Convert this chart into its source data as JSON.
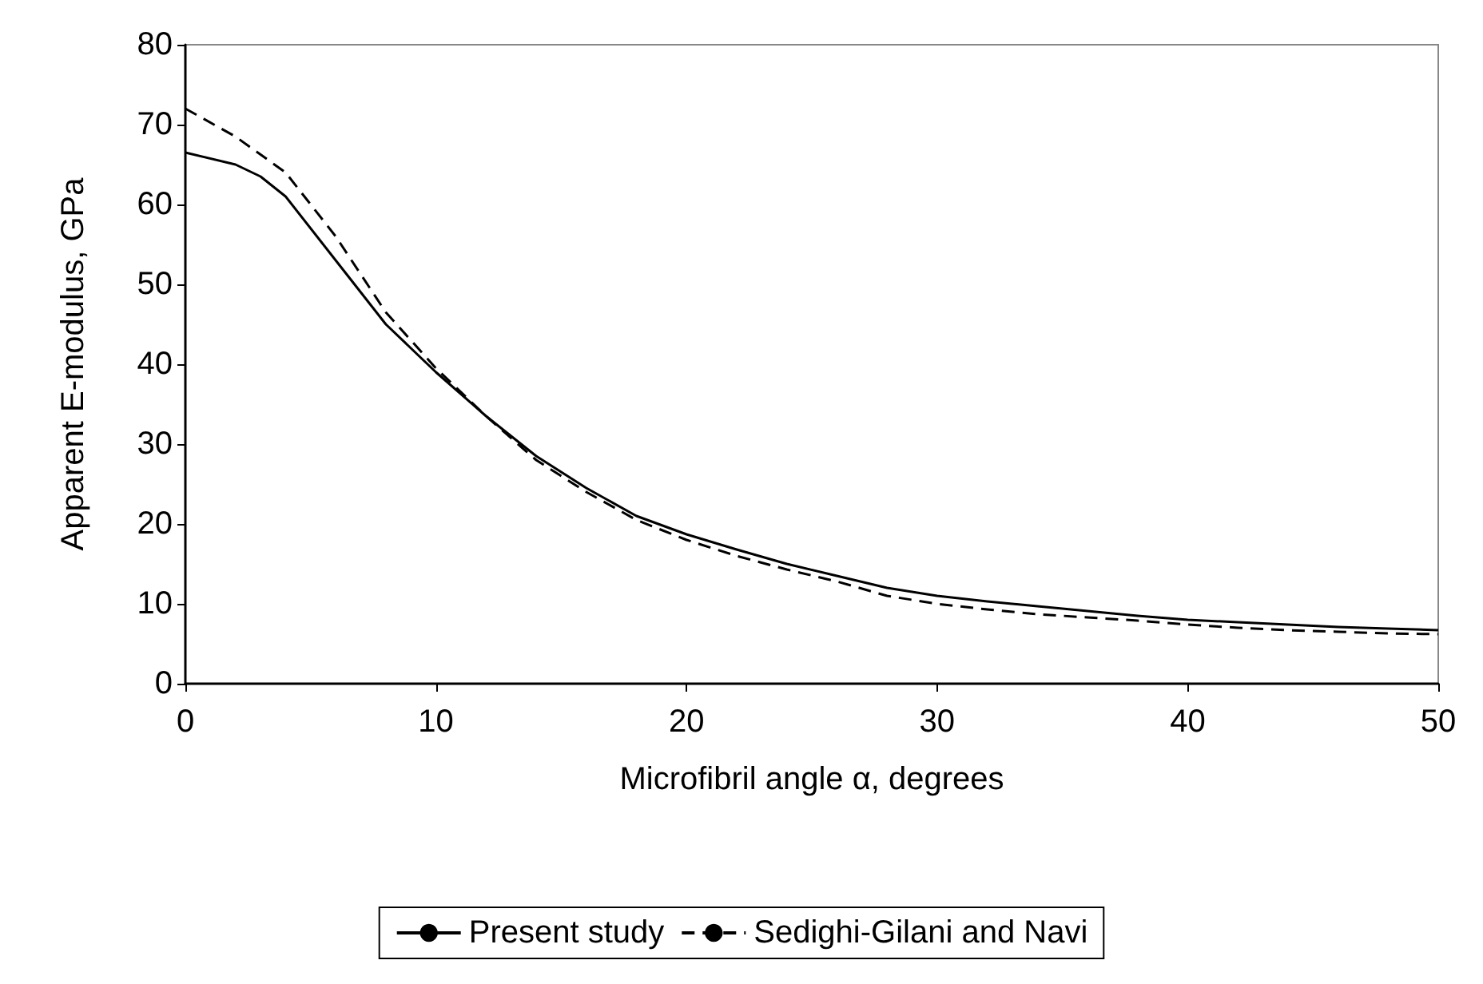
{
  "chart_data": {
    "type": "line",
    "xlabel": "Microfibril angle α, degrees",
    "ylabel": "Apparent E-modulus, GPa",
    "xlim": [
      0,
      50
    ],
    "xticks": [
      0,
      10,
      20,
      30,
      40,
      50
    ],
    "ylim": [
      0,
      80
    ],
    "yticks": [
      0,
      10,
      20,
      30,
      40,
      50,
      60,
      70,
      80
    ],
    "grid": false,
    "legend": "bottom",
    "marker": "none",
    "series": [
      {
        "name": "Present study",
        "color": "#000000",
        "line_style": "solid",
        "x": [
          0,
          2,
          3,
          4,
          6,
          8,
          10,
          12,
          14,
          16,
          18,
          20,
          22,
          24,
          26,
          28,
          30,
          32,
          34,
          36,
          38,
          40,
          42,
          44,
          46,
          48,
          50
        ],
        "values": [
          66.5,
          65,
          63.5,
          61,
          53,
          45,
          39,
          33.5,
          28.5,
          24.5,
          21,
          18.7,
          16.8,
          15,
          13.5,
          12,
          11,
          10.3,
          9.7,
          9.1,
          8.5,
          8,
          7.7,
          7.4,
          7.1,
          6.9,
          6.7
        ]
      },
      {
        "name": "Sedighi-Gilani and Navi",
        "color": "#000000",
        "line_style": "dashed",
        "x": [
          0,
          2,
          4,
          6,
          8,
          10,
          12,
          14,
          16,
          18,
          20,
          22,
          24,
          26,
          28,
          30,
          32,
          34,
          36,
          38,
          40,
          42,
          44,
          46,
          48,
          50
        ],
        "values": [
          72,
          68.5,
          64,
          56,
          46.5,
          39.5,
          33.5,
          28,
          24,
          20.5,
          18,
          16,
          14.3,
          12.8,
          11,
          10,
          9.3,
          8.7,
          8.3,
          7.9,
          7.4,
          7,
          6.7,
          6.5,
          6.3,
          6.2
        ]
      }
    ]
  }
}
